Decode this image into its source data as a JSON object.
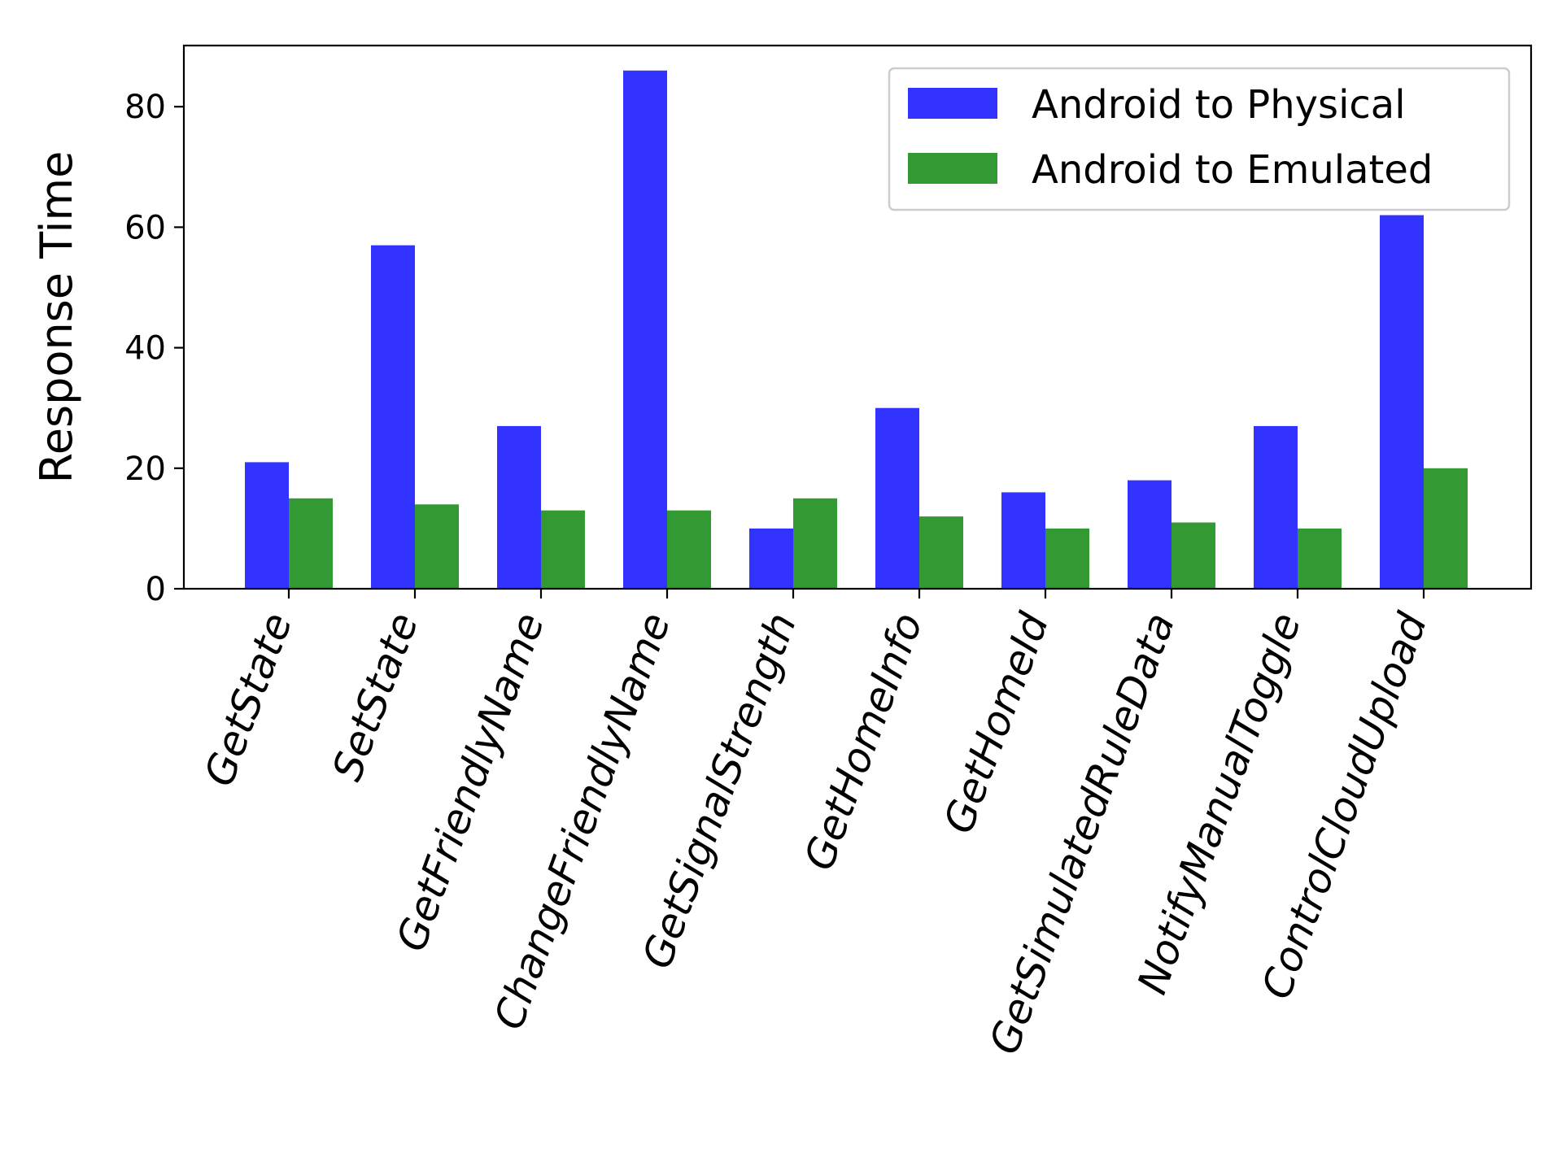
{
  "chart_data": {
    "type": "bar",
    "title": "",
    "xlabel": "",
    "ylabel": "Response Time",
    "ylim": [
      0,
      90
    ],
    "yticks": [
      0,
      20,
      40,
      60,
      80
    ],
    "grid": false,
    "legend_position": "top-right",
    "categories": [
      "GetState",
      "SetState",
      "GetFriendlyName",
      "ChangeFriendlyName",
      "GetSignalStrength",
      "GetHomeInfo",
      "GetHomeId",
      "GetSimulatedRuleData",
      "NotifyManualToggle",
      "ControlCloudUpload"
    ],
    "series": [
      {
        "name": "Android to Physical",
        "color": "#3333ff",
        "values": [
          21,
          57,
          27,
          86,
          10,
          30,
          16,
          18,
          27,
          62
        ]
      },
      {
        "name": "Android to Emulated",
        "color": "#339933",
        "values": [
          15,
          14,
          13,
          13,
          15,
          12,
          10,
          11,
          10,
          20
        ]
      }
    ]
  }
}
